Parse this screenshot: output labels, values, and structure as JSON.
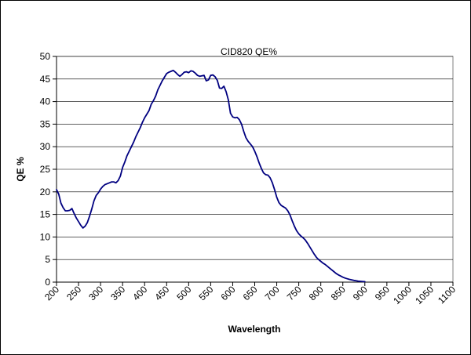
{
  "chart_data": {
    "type": "line",
    "title": "CID820 QE%",
    "xlabel": "Wavelength",
    "ylabel": "QE %",
    "xlim": [
      200,
      1100
    ],
    "ylim": [
      0,
      50
    ],
    "x_ticks": [
      200,
      250,
      300,
      350,
      400,
      450,
      500,
      550,
      600,
      650,
      700,
      750,
      800,
      850,
      900,
      950,
      1000,
      1050,
      1100
    ],
    "y_ticks": [
      0,
      5,
      10,
      15,
      20,
      25,
      30,
      35,
      40,
      45,
      50
    ],
    "grid": "horizontal",
    "legend": "none",
    "series": [
      {
        "color": "#000080",
        "points": [
          [
            200,
            20.5
          ],
          [
            205,
            19.5
          ],
          [
            210,
            17.5
          ],
          [
            215,
            16.5
          ],
          [
            220,
            15.8
          ],
          [
            225,
            15.8
          ],
          [
            230,
            15.9
          ],
          [
            235,
            16.3
          ],
          [
            240,
            15.2
          ],
          [
            245,
            14.2
          ],
          [
            250,
            13.4
          ],
          [
            255,
            12.6
          ],
          [
            260,
            12.0
          ],
          [
            265,
            12.4
          ],
          [
            270,
            13.2
          ],
          [
            275,
            14.6
          ],
          [
            280,
            16.2
          ],
          [
            285,
            18.0
          ],
          [
            290,
            19.2
          ],
          [
            295,
            19.8
          ],
          [
            300,
            20.6
          ],
          [
            305,
            21.2
          ],
          [
            310,
            21.6
          ],
          [
            315,
            21.8
          ],
          [
            320,
            22.0
          ],
          [
            325,
            22.2
          ],
          [
            330,
            22.2
          ],
          [
            335,
            22.0
          ],
          [
            340,
            22.5
          ],
          [
            345,
            23.5
          ],
          [
            350,
            25.4
          ],
          [
            355,
            26.6
          ],
          [
            360,
            28.0
          ],
          [
            365,
            29.0
          ],
          [
            370,
            30.0
          ],
          [
            375,
            31.0
          ],
          [
            380,
            32.2
          ],
          [
            385,
            33.2
          ],
          [
            390,
            34.2
          ],
          [
            395,
            35.4
          ],
          [
            400,
            36.4
          ],
          [
            405,
            37.2
          ],
          [
            410,
            38.0
          ],
          [
            415,
            39.4
          ],
          [
            420,
            40.2
          ],
          [
            425,
            41.2
          ],
          [
            430,
            42.6
          ],
          [
            435,
            43.6
          ],
          [
            440,
            44.6
          ],
          [
            445,
            45.4
          ],
          [
            450,
            46.2
          ],
          [
            455,
            46.5
          ],
          [
            460,
            46.7
          ],
          [
            465,
            46.9
          ],
          [
            470,
            46.5
          ],
          [
            475,
            46.0
          ],
          [
            480,
            45.6
          ],
          [
            485,
            46.0
          ],
          [
            490,
            46.5
          ],
          [
            495,
            46.6
          ],
          [
            500,
            46.4
          ],
          [
            505,
            46.8
          ],
          [
            510,
            46.7
          ],
          [
            515,
            46.3
          ],
          [
            520,
            45.8
          ],
          [
            525,
            45.6
          ],
          [
            530,
            45.7
          ],
          [
            535,
            45.8
          ],
          [
            540,
            44.6
          ],
          [
            545,
            44.8
          ],
          [
            550,
            45.8
          ],
          [
            555,
            45.9
          ],
          [
            560,
            45.5
          ],
          [
            565,
            44.7
          ],
          [
            570,
            43.0
          ],
          [
            575,
            42.9
          ],
          [
            580,
            43.4
          ],
          [
            585,
            42.2
          ],
          [
            590,
            40.4
          ],
          [
            595,
            37.4
          ],
          [
            600,
            36.6
          ],
          [
            605,
            36.4
          ],
          [
            610,
            36.5
          ],
          [
            615,
            36.0
          ],
          [
            620,
            35.0
          ],
          [
            625,
            33.4
          ],
          [
            630,
            32.0
          ],
          [
            635,
            31.2
          ],
          [
            640,
            30.6
          ],
          [
            645,
            30.0
          ],
          [
            650,
            29.0
          ],
          [
            655,
            27.8
          ],
          [
            660,
            26.4
          ],
          [
            665,
            25.2
          ],
          [
            670,
            24.2
          ],
          [
            675,
            23.8
          ],
          [
            680,
            23.7
          ],
          [
            685,
            23.1
          ],
          [
            690,
            22.0
          ],
          [
            695,
            20.5
          ],
          [
            700,
            18.8
          ],
          [
            705,
            17.6
          ],
          [
            710,
            17.0
          ],
          [
            715,
            16.7
          ],
          [
            720,
            16.4
          ],
          [
            725,
            15.8
          ],
          [
            730,
            14.9
          ],
          [
            735,
            13.6
          ],
          [
            740,
            12.4
          ],
          [
            745,
            11.4
          ],
          [
            750,
            10.7
          ],
          [
            755,
            10.2
          ],
          [
            760,
            9.8
          ],
          [
            765,
            9.3
          ],
          [
            770,
            8.6
          ],
          [
            775,
            7.8
          ],
          [
            780,
            7.0
          ],
          [
            785,
            6.2
          ],
          [
            790,
            5.5
          ],
          [
            795,
            5.0
          ],
          [
            800,
            4.6
          ],
          [
            805,
            4.2
          ],
          [
            810,
            3.9
          ],
          [
            815,
            3.5
          ],
          [
            820,
            3.1
          ],
          [
            825,
            2.7
          ],
          [
            830,
            2.3
          ],
          [
            835,
            1.9
          ],
          [
            840,
            1.6
          ],
          [
            845,
            1.35
          ],
          [
            850,
            1.1
          ],
          [
            855,
            0.9
          ],
          [
            860,
            0.75
          ],
          [
            865,
            0.6
          ],
          [
            870,
            0.5
          ],
          [
            875,
            0.38
          ],
          [
            880,
            0.3
          ],
          [
            885,
            0.22
          ],
          [
            890,
            0.17
          ],
          [
            895,
            0.13
          ],
          [
            900,
            0.1
          ]
        ]
      }
    ]
  }
}
